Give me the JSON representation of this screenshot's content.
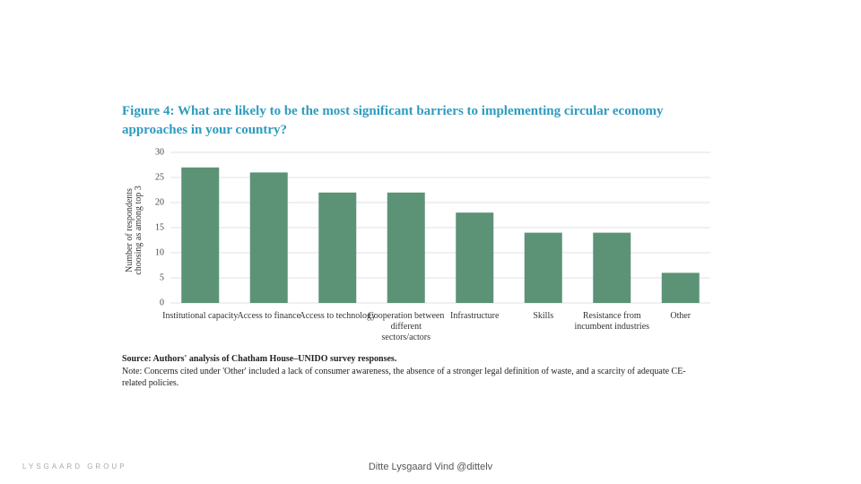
{
  "chart_data": {
    "type": "bar",
    "title": "Figure 4: What are likely to be the most significant barriers to implementing circular economy approaches in your country?",
    "ylabel": "Number of respondents choosing as among top 3",
    "categories": [
      "Institutional capacity",
      "Access to finance",
      "Access to technology",
      "Cooperation between different sectors/actors",
      "Infrastructure",
      "Skills",
      "Resistance from incumbent industries",
      "Other"
    ],
    "values": [
      27,
      26,
      22,
      22,
      18,
      14,
      14,
      6
    ],
    "color": "#5c9377",
    "ylim": [
      0,
      30
    ],
    "yticks": [
      0,
      5,
      10,
      15,
      20,
      25,
      30
    ],
    "grid": true,
    "source": "Source: Authors' analysis of Chatham House–UNIDO survey responses.",
    "note": "Note: Concerns cited under 'Other' included a lack of consumer awareness, the absence of a stronger legal definition of waste, and a scarcity of adequate CE-related policies.",
    "logo": "LYSGAARD GROUP",
    "footer": "Ditte Lysgaard Vind @dittelv"
  }
}
